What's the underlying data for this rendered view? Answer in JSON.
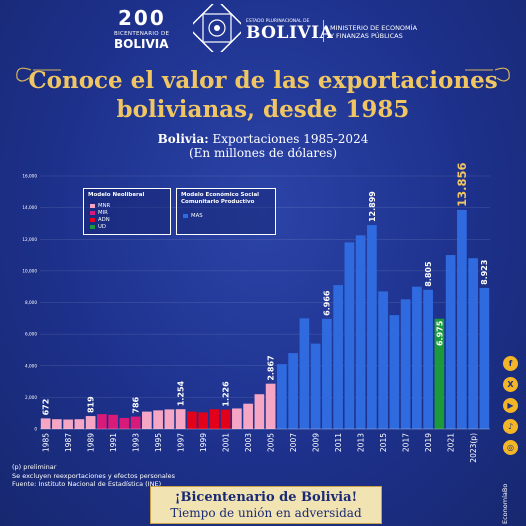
{
  "header": {
    "bicentenario_number": "200",
    "bicentenario_sub": "BICENTENARIO DE",
    "bicentenario_name": "BOLIVIA",
    "estado": "ESTADO PLURINACIONAL DE",
    "estado_name": "BOLIVIA",
    "ministerio_line1": "MINISTERIO DE ECONOMÍA",
    "ministerio_line2": "Y FINANZAS PÚBLICAS"
  },
  "title_line1": "Conoce el valor de las exportaciones",
  "title_line2": "bolivianas, desde 1985",
  "subtitle_bold": "Bolivia:",
  "subtitle_rest": " Exportaciones 1985-2024",
  "subtitle_line2": "(En millones de dólares)",
  "colors": {
    "MNR": "#f4a6c4",
    "MIR": "#d81b7a",
    "ADN": "#e3001b",
    "UD": "#1a9a3c",
    "MAS": "#2f6bdf",
    "highlight_label": "#f0c663"
  },
  "legend": {
    "neoliberal_title": "Modelo Neoliberal",
    "neoliberal_items": [
      "MNR",
      "MIR",
      "ADN",
      "UD"
    ],
    "social_title_line1": "Modelo Económico Social",
    "social_title_line2": "Comunitario Productivo",
    "social_items": [
      "MAS"
    ]
  },
  "chart_data": {
    "type": "bar",
    "title": "Bolivia: Exportaciones 1985-2024",
    "subtitle": "(En millones de dólares)",
    "ylim": [
      0,
      16000
    ],
    "y_ticks": [
      "0",
      "2,000",
      "4,000",
      "6,000",
      "8,000",
      "10,000",
      "12,000",
      "14,000",
      "16,000"
    ],
    "x_tick_labels": [
      "1985",
      "1987",
      "1989",
      "1991",
      "1993",
      "1995",
      "1997",
      "1999",
      "2001",
      "2003",
      "2005",
      "2007",
      "2009",
      "2011",
      "2013",
      "2015",
      "2017",
      "2019",
      "2021",
      "2023(p)"
    ],
    "categories": [
      "1985",
      "1986",
      "1987",
      "1988",
      "1989",
      "1990",
      "1991",
      "1992",
      "1993",
      "1994",
      "1995",
      "1996",
      "1997",
      "1998",
      "1999",
      "2000",
      "2001",
      "2002",
      "2003",
      "2004",
      "2005",
      "2006",
      "2007",
      "2008",
      "2009",
      "2010",
      "2011",
      "2012",
      "2013",
      "2014",
      "2015",
      "2016",
      "2017",
      "2018",
      "2019",
      "2020",
      "2021",
      "2022",
      "2023(p)",
      "2024(p)"
    ],
    "values": [
      672,
      620,
      600,
      620,
      819,
      940,
      900,
      700,
      786,
      1100,
      1180,
      1240,
      1254,
      1100,
      1050,
      1250,
      1226,
      1300,
      1600,
      2200,
      2867,
      4100,
      4800,
      7000,
      5400,
      6966,
      9100,
      11800,
      12250,
      12899,
      8700,
      7200,
      8200,
      9000,
      8805,
      6975,
      11000,
      13856,
      10800,
      8923
    ],
    "party": [
      "MNR",
      "MNR",
      "MNR",
      "MNR",
      "MNR",
      "MIR",
      "MIR",
      "MIR",
      "MIR",
      "MNR",
      "MNR",
      "MNR",
      "MNR",
      "ADN",
      "ADN",
      "ADN",
      "ADN",
      "MNR",
      "MNR",
      "MNR",
      "MNR",
      "MAS",
      "MAS",
      "MAS",
      "MAS",
      "MAS",
      "MAS",
      "MAS",
      "MAS",
      "MAS",
      "MAS",
      "MAS",
      "MAS",
      "MAS",
      "MAS",
      "UD",
      "MAS",
      "MAS",
      "MAS",
      "MAS"
    ],
    "data_labels": [
      {
        "index": 0,
        "text": "672"
      },
      {
        "index": 4,
        "text": "819"
      },
      {
        "index": 8,
        "text": "786"
      },
      {
        "index": 12,
        "text": "1.254"
      },
      {
        "index": 16,
        "text": "1.226"
      },
      {
        "index": 20,
        "text": "2.867"
      },
      {
        "index": 25,
        "text": "6.966"
      },
      {
        "index": 29,
        "text": "12.899"
      },
      {
        "index": 34,
        "text": "8.805"
      },
      {
        "index": 35,
        "text": "6.975"
      },
      {
        "index": 37,
        "text": "13.856"
      },
      {
        "index": 39,
        "text": "8.923"
      }
    ],
    "highlight_index": 37,
    "grid": true
  },
  "footnotes": [
    "(p) preliminar",
    "Se excluyen reexportaciones y efectos personales",
    "Fuente: Instituto Nacional de Estadística (INE)"
  ],
  "banner_line1": "¡Bicentenario de Bolivia!",
  "banner_line2": "Tiempo de unión en adversidad",
  "social": [
    "f",
    "X",
    "▶",
    "♪",
    "◎"
  ],
  "social_icons": [
    "facebook-icon",
    "x-icon",
    "youtube-icon",
    "tiktok-icon",
    "instagram-icon"
  ],
  "handle": "EconomíaBo"
}
